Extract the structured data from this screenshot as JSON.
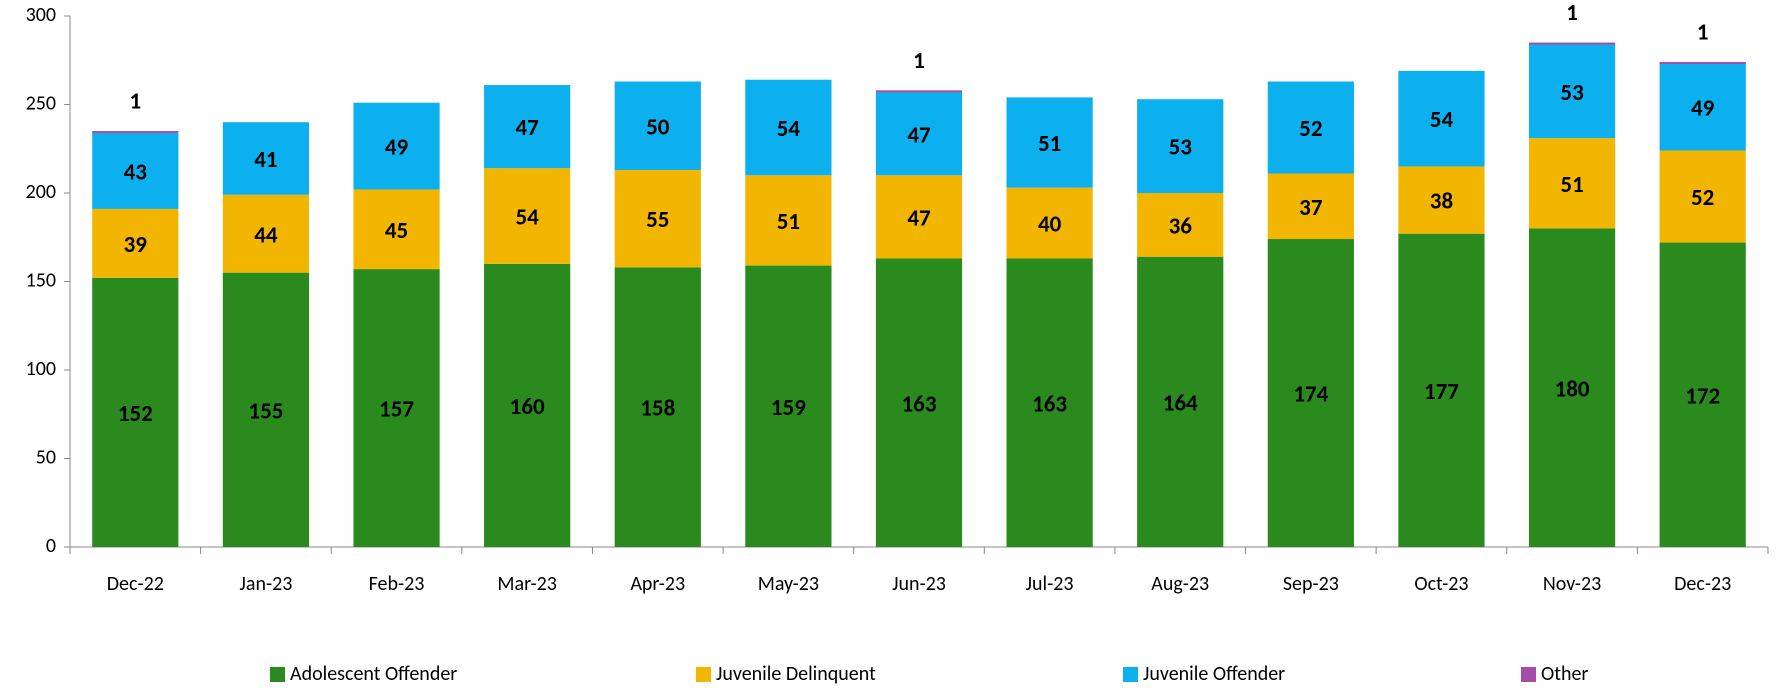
{
  "chart_data": {
    "type": "stacked_bar",
    "categories": [
      "Dec-22",
      "Jan-23",
      "Feb-23",
      "Mar-23",
      "Apr-23",
      "May-23",
      "Jun-23",
      "Jul-23",
      "Aug-23",
      "Sep-23",
      "Oct-23",
      "Nov-23",
      "Dec-23"
    ],
    "series": [
      {
        "name": "Adolescent Offender",
        "color": "#2a8a1e",
        "label_color": "#ffffff",
        "values": [
          152,
          155,
          157,
          160,
          158,
          159,
          163,
          163,
          164,
          174,
          177,
          180,
          172
        ]
      },
      {
        "name": "Juvenile Delinquent",
        "color": "#f2b600",
        "label_color": "#000000",
        "values": [
          39,
          44,
          45,
          54,
          55,
          51,
          47,
          40,
          36,
          37,
          38,
          51,
          52
        ]
      },
      {
        "name": "Juvenile Offender",
        "color": "#0db0ee",
        "label_color": "#ffffff",
        "values": [
          43,
          41,
          49,
          47,
          50,
          54,
          47,
          51,
          53,
          52,
          54,
          53,
          49
        ]
      },
      {
        "name": "Other",
        "color": "#a64ca6",
        "label_color": "#000000",
        "values": [
          1,
          null,
          null,
          null,
          null,
          null,
          1,
          null,
          null,
          null,
          null,
          1,
          1
        ]
      }
    ],
    "ylim": [
      0,
      300
    ],
    "yticks": [
      0,
      50,
      100,
      150,
      200,
      250,
      300
    ],
    "grid": false,
    "legend": "bottom"
  }
}
